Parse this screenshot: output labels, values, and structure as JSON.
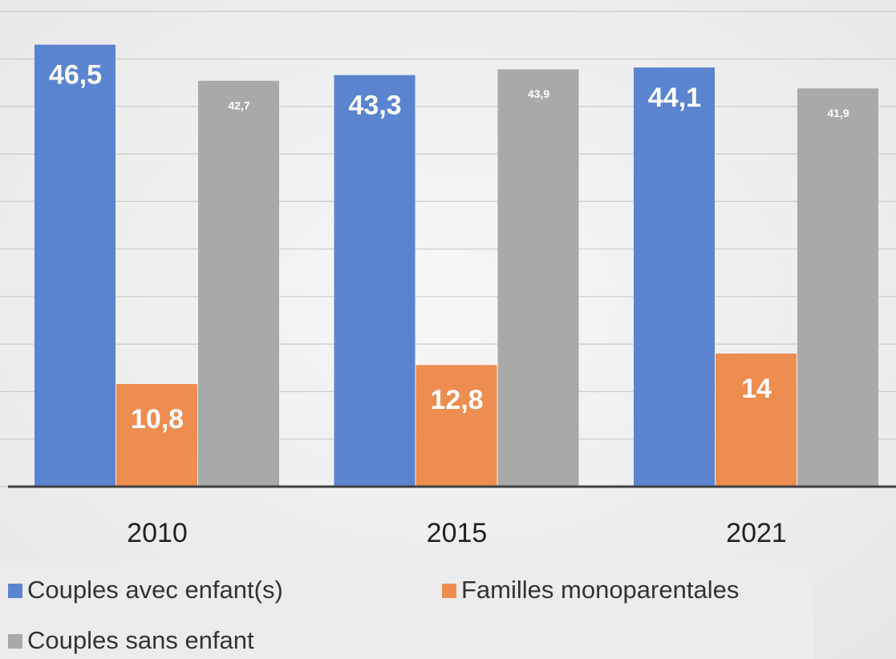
{
  "chart_data": {
    "type": "bar",
    "categories": [
      "2010",
      "2015",
      "2021"
    ],
    "series": [
      {
        "name": "Couples avec enfant(s)",
        "color": "#5b84d0",
        "values": [
          46.5,
          43.3,
          44.1
        ],
        "value_labels": [
          "46,5",
          "43,3",
          "44,1"
        ]
      },
      {
        "name": "Familles monoparentales",
        "color": "#ee8d50",
        "values": [
          10.8,
          12.8,
          14
        ],
        "value_labels": [
          "10,8",
          "12,8",
          "14"
        ]
      },
      {
        "name": "Couples sans enfant",
        "color": "#a9a9a9",
        "values": [
          42.7,
          43.9,
          41.9
        ],
        "value_labels": [
          "42,7",
          "43,9",
          "41,9"
        ]
      }
    ],
    "ylim": [
      0,
      51.2
    ],
    "yticks": [
      0,
      5,
      10,
      15,
      20,
      25,
      30,
      35,
      40,
      45,
      50
    ],
    "grid": true
  }
}
